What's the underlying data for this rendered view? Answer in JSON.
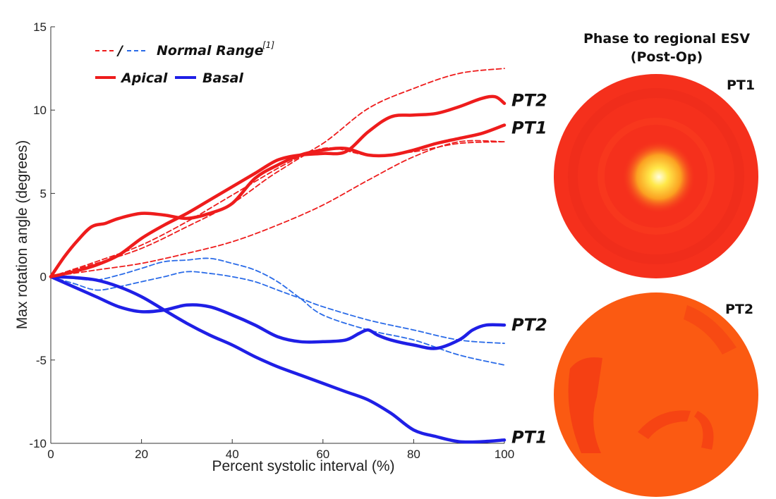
{
  "chart_data": {
    "type": "line",
    "xlabel": "Percent systolic interval (%)",
    "ylabel": "Max rotation angle (degrees)",
    "xlim": [
      0,
      100
    ],
    "ylim": [
      -10,
      15
    ],
    "xticks": [
      0,
      20,
      40,
      60,
      80,
      100
    ],
    "yticks": [
      15,
      10,
      5,
      0,
      -5,
      -10
    ],
    "xtick_labels": [
      "0",
      "20",
      "40",
      "60",
      "80",
      "100"
    ],
    "ytick_labels": [
      "15",
      "10",
      "5",
      "0",
      "-5",
      "-10"
    ],
    "grid": false,
    "legend": {
      "placement": "top-left",
      "normal_range_label": "Normal Range",
      "normal_range_ref": "[1]",
      "separator": "/",
      "apical_label": "Apical",
      "basal_label": "Basal"
    },
    "colors": {
      "apical": "#ee1c1c",
      "basal": "#1f1fe6",
      "normal_apical": "#ee1c1c",
      "normal_basal": "#2a6be8"
    },
    "series": [
      {
        "group": "apical",
        "style": "solid",
        "end_label": "PT2",
        "x": [
          0,
          5,
          10,
          15,
          20,
          25,
          30,
          35,
          40,
          45,
          50,
          55,
          60,
          65,
          70,
          75,
          80,
          85,
          90,
          95,
          98,
          100
        ],
        "y": [
          0,
          0.3,
          0.7,
          1.3,
          2.3,
          3.1,
          3.8,
          4.6,
          5.4,
          6.2,
          7.0,
          7.3,
          7.4,
          7.5,
          8.7,
          9.6,
          9.7,
          9.8,
          10.2,
          10.7,
          10.8,
          10.4
        ]
      },
      {
        "group": "apical",
        "style": "solid",
        "end_label": "PT1",
        "x": [
          0,
          3,
          6,
          9,
          12,
          15,
          20,
          25,
          30,
          35,
          40,
          45,
          50,
          55,
          60,
          65,
          70,
          75,
          80,
          85,
          90,
          95,
          100
        ],
        "y": [
          0,
          1.2,
          2.2,
          3.0,
          3.2,
          3.5,
          3.8,
          3.7,
          3.5,
          3.8,
          4.4,
          5.9,
          6.7,
          7.3,
          7.6,
          7.7,
          7.3,
          7.3,
          7.6,
          8.0,
          8.3,
          8.6,
          9.1
        ]
      },
      {
        "group": "basal",
        "style": "solid",
        "end_label": "PT2",
        "x": [
          0,
          5,
          10,
          15,
          20,
          25,
          30,
          35,
          40,
          45,
          50,
          55,
          60,
          65,
          68,
          70,
          72,
          75,
          80,
          85,
          90,
          93,
          96,
          100
        ],
        "y": [
          0,
          -0.6,
          -1.2,
          -1.8,
          -2.1,
          -2.0,
          -1.7,
          -1.8,
          -2.3,
          -2.9,
          -3.6,
          -3.9,
          -3.9,
          -3.8,
          -3.4,
          -3.2,
          -3.5,
          -3.8,
          -4.1,
          -4.3,
          -3.8,
          -3.2,
          -2.9,
          -2.9
        ]
      },
      {
        "group": "basal",
        "style": "solid",
        "end_label": "PT1",
        "x": [
          0,
          5,
          10,
          15,
          20,
          25,
          30,
          35,
          40,
          45,
          50,
          55,
          60,
          65,
          70,
          75,
          80,
          85,
          90,
          95,
          100
        ],
        "y": [
          0,
          -0.05,
          -0.2,
          -0.6,
          -1.2,
          -2.0,
          -2.8,
          -3.5,
          -4.1,
          -4.8,
          -5.4,
          -5.9,
          -6.4,
          -6.9,
          -7.4,
          -8.2,
          -9.2,
          -9.6,
          -9.9,
          -9.9,
          -9.8
        ]
      },
      {
        "group": "normal_apical",
        "style": "dashed",
        "x": [
          0,
          10,
          20,
          30,
          40,
          50,
          60,
          70,
          80,
          90,
          100
        ],
        "y": [
          0,
          0.9,
          1.9,
          3.3,
          4.9,
          6.5,
          8.0,
          10.1,
          11.3,
          12.2,
          12.5
        ]
      },
      {
        "group": "normal_apical",
        "style": "dashed",
        "x": [
          0,
          10,
          20,
          30,
          40,
          50,
          60,
          70,
          80,
          90,
          100
        ],
        "y": [
          0,
          0.4,
          0.8,
          1.4,
          2.1,
          3.1,
          4.3,
          5.8,
          7.2,
          8.1,
          8.1
        ]
      },
      {
        "group": "normal_apical",
        "style": "dashed",
        "x": [
          0,
          10,
          20,
          30,
          40,
          50,
          60,
          70,
          80,
          90,
          100
        ],
        "y": [
          0,
          0.8,
          1.7,
          3.0,
          4.4,
          6.3,
          7.7,
          7.3,
          7.5,
          8.0,
          8.1
        ]
      },
      {
        "group": "normal_basal",
        "style": "dashed",
        "x": [
          0,
          5,
          10,
          15,
          20,
          25,
          30,
          35,
          40,
          45,
          50,
          55,
          60,
          70,
          80,
          90,
          100
        ],
        "y": [
          0,
          -0.4,
          -0.8,
          -0.6,
          -0.3,
          0.0,
          0.3,
          0.2,
          0.0,
          -0.3,
          -0.8,
          -1.3,
          -1.8,
          -2.6,
          -3.2,
          -3.8,
          -4.0
        ]
      },
      {
        "group": "normal_basal",
        "style": "dashed",
        "x": [
          0,
          5,
          10,
          15,
          20,
          25,
          30,
          35,
          40,
          45,
          50,
          55,
          60,
          70,
          80,
          90,
          100
        ],
        "y": [
          0,
          -0.1,
          -0.2,
          0.1,
          0.5,
          0.9,
          1.0,
          1.1,
          0.8,
          0.4,
          -0.3,
          -1.3,
          -2.3,
          -3.2,
          -3.8,
          -4.7,
          -5.3
        ]
      }
    ]
  },
  "polar": {
    "title_line1": "Phase to regional ESV",
    "title_line2": "(Post-Op)",
    "top_label": "PT1",
    "bottom_label": "PT2",
    "top_color": "#f5301c",
    "bottom_color": "#fb5a12",
    "top_center_highlight": "#ffe84a"
  }
}
